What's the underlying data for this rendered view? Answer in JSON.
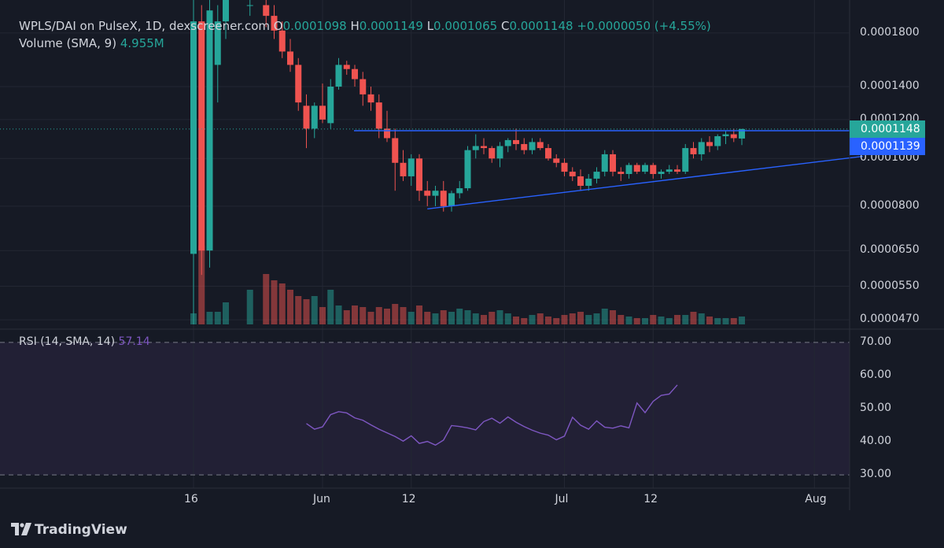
{
  "header": {
    "pair": "WPLS/DAI on PulseX, 1D, dexscreener.com",
    "o_label": "O",
    "o_value": "0.0001098",
    "h_label": "H",
    "h_value": "0.0001149",
    "l_label": "L",
    "l_value": "0.0001065",
    "c_label": "C",
    "c_value": "0.0001148",
    "change": "+0.0000050 (+4.55%)",
    "volume_label": "Volume (SMA, 9)",
    "volume_value": "4.955M",
    "rsi_label": "RSI (14, SMA, 14)",
    "rsi_value": "57.14"
  },
  "badges": {
    "close": "0.0001148",
    "line": "0.0001139"
  },
  "brand": {
    "name": "TradingView",
    "logo_icon": "tradingview-logo-icon"
  },
  "colors": {
    "up": "#26a69a",
    "down": "#ef5350",
    "line": "#2962ff",
    "rsi": "#7e57c2"
  },
  "chart_data": [
    {
      "type": "candlestick",
      "scale": "log",
      "ylim": [
        4.6e-05,
        0.00021
      ],
      "y_ticks": [
        "0.0001800",
        "0.0001400",
        "0.0001200",
        "0.0001000",
        "0.0000800",
        "0.0000650",
        "0.0000550",
        "0.0000470"
      ],
      "x_ticks": [
        "16",
        "Jun",
        "12",
        "Jul",
        "12",
        "Aug"
      ],
      "x_tick_dates": [
        "2023-05-16",
        "2023-06-01",
        "2023-06-12",
        "2023-07-01",
        "2023-07-12",
        "2023-08-01"
      ],
      "start_date": "2023-05-16",
      "candles": [
        {
          "d": "2023-05-16",
          "o": 6.4e-05,
          "h": 0.00021,
          "l": 4.6e-05,
          "c": 0.00019
        },
        {
          "d": "2023-05-17",
          "o": 0.00019,
          "h": 0.000205,
          "l": 5.8e-05,
          "c": 6.5e-05
        },
        {
          "d": "2023-05-18",
          "o": 6.5e-05,
          "h": 0.00021,
          "l": 6e-05,
          "c": 0.0002
        },
        {
          "d": "2023-05-19",
          "o": 0.000155,
          "h": 0.000205,
          "l": 0.00013,
          "c": 0.00019
        },
        {
          "d": "2023-05-20",
          "o": 0.00019,
          "h": 0.00021,
          "l": 0.000175,
          "c": 0.00021
        },
        {
          "d": "2023-05-23",
          "o": 0.000205,
          "h": 0.00021,
          "l": 0.000195,
          "c": 0.000205
        },
        {
          "d": "2023-05-25",
          "o": 0.000205,
          "h": 0.00021,
          "l": 0.000185,
          "c": 0.000195
        },
        {
          "d": "2023-05-26",
          "o": 0.000195,
          "h": 0.000205,
          "l": 0.000175,
          "c": 0.000182
        },
        {
          "d": "2023-05-27",
          "o": 0.000182,
          "h": 0.00019,
          "l": 0.00016,
          "c": 0.000165
        },
        {
          "d": "2023-05-28",
          "o": 0.000165,
          "h": 0.000175,
          "l": 0.00015,
          "c": 0.000155
        },
        {
          "d": "2023-05-29",
          "o": 0.000155,
          "h": 0.00016,
          "l": 0.000125,
          "c": 0.00013
        },
        {
          "d": "2023-05-30",
          "o": 0.000128,
          "h": 0.000135,
          "l": 0.000105,
          "c": 0.000115
        },
        {
          "d": "2023-05-31",
          "o": 0.000115,
          "h": 0.00013,
          "l": 0.00011,
          "c": 0.000128
        },
        {
          "d": "2023-06-01",
          "o": 0.000128,
          "h": 0.000142,
          "l": 0.000118,
          "c": 0.00012
        },
        {
          "d": "2023-06-02",
          "o": 0.000118,
          "h": 0.000145,
          "l": 0.000115,
          "c": 0.00014
        },
        {
          "d": "2023-06-03",
          "o": 0.00014,
          "h": 0.00016,
          "l": 0.000138,
          "c": 0.000155
        },
        {
          "d": "2023-06-04",
          "o": 0.000155,
          "h": 0.000158,
          "l": 0.000148,
          "c": 0.000152
        },
        {
          "d": "2023-06-05",
          "o": 0.000152,
          "h": 0.000155,
          "l": 0.00014,
          "c": 0.000145
        },
        {
          "d": "2023-06-06",
          "o": 0.000145,
          "h": 0.00015,
          "l": 0.000128,
          "c": 0.000135
        },
        {
          "d": "2023-06-07",
          "o": 0.000135,
          "h": 0.00014,
          "l": 0.000125,
          "c": 0.00013
        },
        {
          "d": "2023-06-08",
          "o": 0.00013,
          "h": 0.000135,
          "l": 0.00011,
          "c": 0.000115
        },
        {
          "d": "2023-06-09",
          "o": 0.000115,
          "h": 0.000125,
          "l": 0.000108,
          "c": 0.00011
        },
        {
          "d": "2023-06-10",
          "o": 0.00011,
          "h": 0.000115,
          "l": 8.6e-05,
          "c": 9.8e-05
        },
        {
          "d": "2023-06-11",
          "o": 9.8e-05,
          "h": 0.000104,
          "l": 9e-05,
          "c": 9.2e-05
        },
        {
          "d": "2023-06-12",
          "o": 9.2e-05,
          "h": 0.000102,
          "l": 8.8e-05,
          "c": 0.0001
        },
        {
          "d": "2023-06-13",
          "o": 0.0001,
          "h": 0.000102,
          "l": 8.2e-05,
          "c": 8.6e-05
        },
        {
          "d": "2023-06-14",
          "o": 8.6e-05,
          "h": 9e-05,
          "l": 8e-05,
          "c": 8.4e-05
        },
        {
          "d": "2023-06-15",
          "o": 8.4e-05,
          "h": 8.8e-05,
          "l": 8e-05,
          "c": 8.6e-05
        },
        {
          "d": "2023-06-16",
          "o": 8.6e-05,
          "h": 9e-05,
          "l": 7.8e-05,
          "c": 8e-05
        },
        {
          "d": "2023-06-17",
          "o": 8e-05,
          "h": 8.6e-05,
          "l": 7.8e-05,
          "c": 8.5e-05
        },
        {
          "d": "2023-06-18",
          "o": 8.5e-05,
          "h": 9e-05,
          "l": 8.3e-05,
          "c": 8.7e-05
        },
        {
          "d": "2023-06-19",
          "o": 8.7e-05,
          "h": 0.000106,
          "l": 8.6e-05,
          "c": 0.000104
        },
        {
          "d": "2023-06-20",
          "o": 0.000104,
          "h": 0.000112,
          "l": 0.0001,
          "c": 0.000106
        },
        {
          "d": "2023-06-21",
          "o": 0.000106,
          "h": 0.00011,
          "l": 0.000102,
          "c": 0.000105
        },
        {
          "d": "2023-06-22",
          "o": 0.000105,
          "h": 0.000106,
          "l": 9.8e-05,
          "c": 0.0001
        },
        {
          "d": "2023-06-23",
          "o": 0.0001,
          "h": 0.000108,
          "l": 9.6e-05,
          "c": 0.000106
        },
        {
          "d": "2023-06-24",
          "o": 0.000106,
          "h": 0.00011,
          "l": 0.000103,
          "c": 0.000109
        },
        {
          "d": "2023-06-25",
          "o": 0.000109,
          "h": 0.000115,
          "l": 0.000104,
          "c": 0.000107
        },
        {
          "d": "2023-06-26",
          "o": 0.000107,
          "h": 0.00011,
          "l": 0.000102,
          "c": 0.000104
        },
        {
          "d": "2023-06-27",
          "o": 0.000104,
          "h": 0.00011,
          "l": 0.000102,
          "c": 0.000108
        },
        {
          "d": "2023-06-28",
          "o": 0.000108,
          "h": 0.00011,
          "l": 0.000104,
          "c": 0.000105
        },
        {
          "d": "2023-06-29",
          "o": 0.000105,
          "h": 0.000107,
          "l": 9.9e-05,
          "c": 0.0001
        },
        {
          "d": "2023-06-30",
          "o": 0.0001,
          "h": 0.000102,
          "l": 9.6e-05,
          "c": 9.8e-05
        },
        {
          "d": "2023-07-01",
          "o": 9.8e-05,
          "h": 0.0001,
          "l": 9.2e-05,
          "c": 9.4e-05
        },
        {
          "d": "2023-07-02",
          "o": 9.4e-05,
          "h": 9.6e-05,
          "l": 9e-05,
          "c": 9.2e-05
        },
        {
          "d": "2023-07-03",
          "o": 9.2e-05,
          "h": 9.5e-05,
          "l": 8.6e-05,
          "c": 8.8e-05
        },
        {
          "d": "2023-07-04",
          "o": 8.8e-05,
          "h": 9.3e-05,
          "l": 8.6e-05,
          "c": 9.1e-05
        },
        {
          "d": "2023-07-05",
          "o": 9.1e-05,
          "h": 9.6e-05,
          "l": 8.9e-05,
          "c": 9.4e-05
        },
        {
          "d": "2023-07-06",
          "o": 9.4e-05,
          "h": 0.000104,
          "l": 9.2e-05,
          "c": 0.000102
        },
        {
          "d": "2023-07-07",
          "o": 0.000102,
          "h": 0.000104,
          "l": 9.2e-05,
          "c": 9.4e-05
        },
        {
          "d": "2023-07-08",
          "o": 9.4e-05,
          "h": 9.6e-05,
          "l": 9e-05,
          "c": 9.3e-05
        },
        {
          "d": "2023-07-09",
          "o": 9.3e-05,
          "h": 9.8e-05,
          "l": 9.1e-05,
          "c": 9.7e-05
        },
        {
          "d": "2023-07-10",
          "o": 9.7e-05,
          "h": 9.8e-05,
          "l": 9.3e-05,
          "c": 9.4e-05
        },
        {
          "d": "2023-07-11",
          "o": 9.4e-05,
          "h": 9.8e-05,
          "l": 9.3e-05,
          "c": 9.7e-05
        },
        {
          "d": "2023-07-12",
          "o": 9.7e-05,
          "h": 9.8e-05,
          "l": 9.1e-05,
          "c": 9.3e-05
        },
        {
          "d": "2023-07-13",
          "o": 9.3e-05,
          "h": 9.5e-05,
          "l": 9.1e-05,
          "c": 9.4e-05
        },
        {
          "d": "2023-07-14",
          "o": 9.4e-05,
          "h": 9.7e-05,
          "l": 9.3e-05,
          "c": 9.5e-05
        },
        {
          "d": "2023-07-15",
          "o": 9.5e-05,
          "h": 9.7e-05,
          "l": 9.3e-05,
          "c": 9.4e-05
        },
        {
          "d": "2023-07-16",
          "o": 9.4e-05,
          "h": 0.000107,
          "l": 9.3e-05,
          "c": 0.000105
        },
        {
          "d": "2023-07-17",
          "o": 0.000105,
          "h": 0.000108,
          "l": 0.0001,
          "c": 0.000102
        },
        {
          "d": "2023-07-18",
          "o": 0.000102,
          "h": 0.00011,
          "l": 9.9e-05,
          "c": 0.000108
        },
        {
          "d": "2023-07-19",
          "o": 0.000108,
          "h": 0.000111,
          "l": 0.000103,
          "c": 0.000106
        },
        {
          "d": "2023-07-20",
          "o": 0.000106,
          "h": 0.000112,
          "l": 0.000104,
          "c": 0.000111
        },
        {
          "d": "2023-07-21",
          "o": 0.000111,
          "h": 0.000114,
          "l": 0.000107,
          "c": 0.000112
        },
        {
          "d": "2023-07-22",
          "o": 0.000112,
          "h": 0.000115,
          "l": 0.000108,
          "c": 0.00011
        },
        {
          "d": "2023-07-23",
          "o": 0.0001098,
          "h": 0.0001149,
          "l": 0.0001065,
          "c": 0.0001148
        }
      ],
      "volume": [
        0.35,
        2.5,
        0.4,
        0.4,
        0.7,
        1.1,
        1.6,
        1.4,
        1.3,
        1.1,
        0.9,
        0.8,
        0.9,
        0.55,
        1.1,
        0.6,
        0.45,
        0.6,
        0.55,
        0.4,
        0.55,
        0.5,
        0.65,
        0.55,
        0.4,
        0.6,
        0.4,
        0.35,
        0.45,
        0.4,
        0.5,
        0.45,
        0.35,
        0.3,
        0.4,
        0.45,
        0.35,
        0.25,
        0.2,
        0.3,
        0.35,
        0.25,
        0.2,
        0.3,
        0.35,
        0.4,
        0.3,
        0.35,
        0.5,
        0.45,
        0.3,
        0.25,
        0.2,
        0.2,
        0.3,
        0.25,
        0.2,
        0.3,
        0.3,
        0.4,
        0.35,
        0.25,
        0.2,
        0.2,
        0.2,
        0.25
      ],
      "volume_colors": "same as candle direction",
      "resistance_price": 0.0001139,
      "trendline": {
        "start_date": "2023-06-14",
        "start_price": 7.9e-05,
        "end_date": "2023-08-07",
        "end_price": 0.000101
      }
    },
    {
      "type": "line",
      "ylim": [
        26,
        74
      ],
      "y_ticks": [
        "70.00",
        "60.00",
        "50.00",
        "40.00",
        "30.00"
      ],
      "bands": [
        70,
        30
      ],
      "series": [
        {
          "x_start_date": "2023-05-30",
          "values": [
            45.5,
            43.8,
            44.5,
            48.2,
            49.1,
            48.7,
            47.2,
            46.5,
            45.1,
            43.8,
            42.7,
            41.6,
            40.2,
            41.8,
            39.5,
            40.1,
            39.0,
            40.5,
            44.9,
            44.6,
            44.2,
            43.6,
            46.1,
            47.1,
            45.6,
            47.5,
            45.9,
            44.6,
            43.5,
            42.6,
            42.0,
            40.6,
            41.7,
            47.4,
            45.0,
            43.8,
            46.3,
            44.4,
            44.1,
            44.8,
            44.2,
            51.7,
            48.8,
            52.2,
            54.0,
            54.4,
            57.14
          ]
        }
      ]
    }
  ]
}
